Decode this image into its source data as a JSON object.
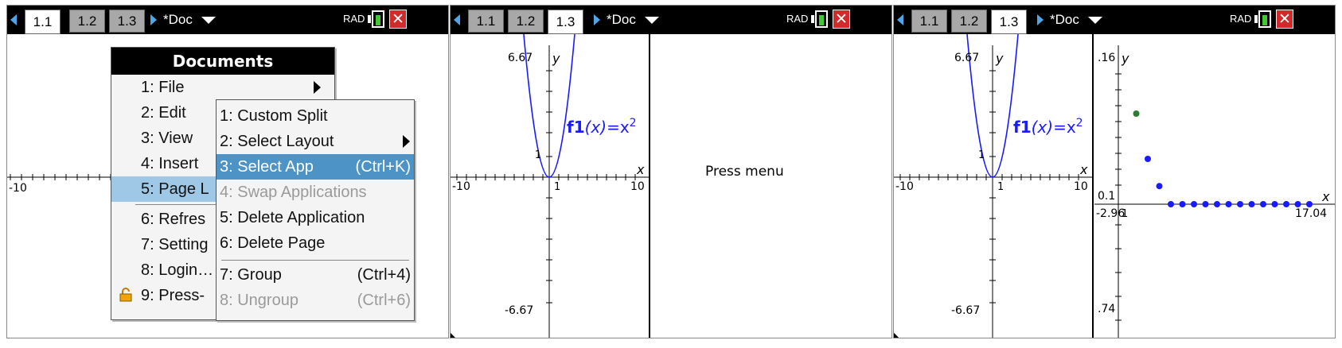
{
  "panels": [
    {
      "tabs": [
        "1.1",
        "1.2",
        "1.3"
      ],
      "active_tab": 0,
      "doc_name": "*Doc",
      "mode": "RAD",
      "close_symbol": "✕",
      "axis": {
        "xmin_label": "-10"
      },
      "documents_menu": {
        "title": "Documents",
        "items": [
          "1: File",
          "2: Edit",
          "3: View",
          "4: Insert",
          "5: Page L",
          "6: Refres",
          "7: Setting",
          "8: Login…",
          "9: Press-"
        ]
      },
      "page_layout_submenu": {
        "items": [
          {
            "label": "1: Custom Split",
            "shortcut": ""
          },
          {
            "label": "2: Select Layout",
            "shortcut": ""
          },
          {
            "label": "3: Select App",
            "shortcut": "(Ctrl+K)"
          },
          {
            "label": "4: Swap Applications",
            "shortcut": ""
          },
          {
            "label": "5: Delete Application",
            "shortcut": ""
          },
          {
            "label": "6: Delete Page",
            "shortcut": ""
          },
          {
            "label": "7: Group",
            "shortcut": "(Ctrl+4)"
          },
          {
            "label": "8: Ungroup",
            "shortcut": "(Ctrl+6)"
          }
        ]
      }
    },
    {
      "tabs": [
        "1.1",
        "1.2",
        "1.3"
      ],
      "active_tab": 2,
      "doc_name": "*Doc",
      "mode": "RAD",
      "close_symbol": "✕",
      "graph": {
        "ymax": "6.67",
        "ymin": "-6.67",
        "xmin": "-10",
        "xmax": "10",
        "x_label": "x",
        "y_label": "y",
        "x_tick": "1",
        "y_tick": "1",
        "function_name": "f1",
        "function_arg": "(x)",
        "function_body": "=x",
        "function_exp": "2"
      },
      "right_pane_text": "Press menu"
    },
    {
      "tabs": [
        "1.1",
        "1.2",
        "1.3"
      ],
      "active_tab": 2,
      "doc_name": "*Doc",
      "mode": "RAD",
      "close_symbol": "✕",
      "graph": {
        "ymax": "6.67",
        "ymin": "-6.67",
        "xmin": "-10",
        "xmax": "10",
        "x_label": "x",
        "y_label": "y",
        "x_tick": "1",
        "y_tick": "1",
        "function_name": "f1",
        "function_arg": "(x)",
        "function_body": "=x",
        "function_exp": "2"
      },
      "sequence_graph": {
        "ymax": ".16",
        "ymin": ".74",
        "xmin": "-2.96",
        "xmax": "17.04",
        "y_tick": "0.1",
        "x_tick": "1",
        "x_label": "x",
        "y_label": "y",
        "points": [
          {
            "n": 1,
            "v": 0.1,
            "color": "#2e7d32"
          },
          {
            "n": 2,
            "v": 0.05,
            "color": "#1a1aff"
          },
          {
            "n": 3,
            "v": 0.02,
            "color": "#1a1aff"
          },
          {
            "n": 4,
            "v": 0.0,
            "color": "#1a1aff"
          },
          {
            "n": 5,
            "v": 0.0,
            "color": "#1a1aff"
          },
          {
            "n": 6,
            "v": 0.0,
            "color": "#1a1aff"
          },
          {
            "n": 7,
            "v": 0.0,
            "color": "#1a1aff"
          },
          {
            "n": 8,
            "v": 0.0,
            "color": "#1a1aff"
          },
          {
            "n": 9,
            "v": 0.0,
            "color": "#1a1aff"
          },
          {
            "n": 10,
            "v": 0.0,
            "color": "#1a1aff"
          },
          {
            "n": 11,
            "v": 0.0,
            "color": "#1a1aff"
          },
          {
            "n": 12,
            "v": 0.0,
            "color": "#1a1aff"
          },
          {
            "n": 13,
            "v": 0.0,
            "color": "#1a1aff"
          },
          {
            "n": 14,
            "v": 0.0,
            "color": "#1a1aff"
          },
          {
            "n": 15,
            "v": 0.0,
            "color": "#1a1aff"
          },
          {
            "n": 16,
            "v": 0.0,
            "color": "#1a1aff"
          }
        ]
      }
    }
  ],
  "colors": {
    "curve": "#1a1aff",
    "accent": "#4fa6e6",
    "close": "#d12a2a",
    "selection": "#4e93c6",
    "highlight": "#9fc8e6"
  }
}
